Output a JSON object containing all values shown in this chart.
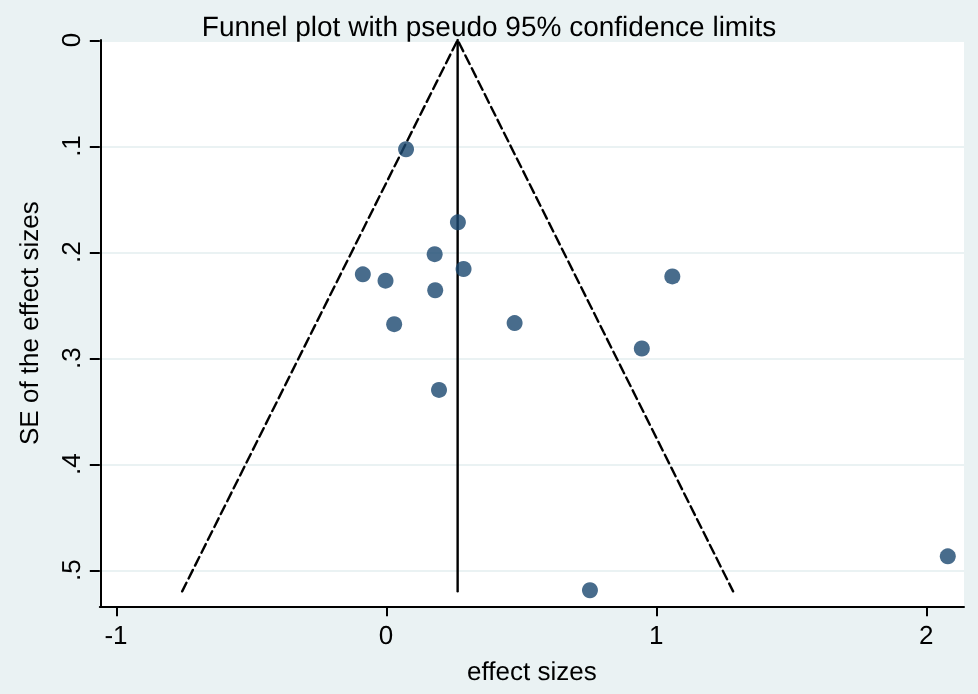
{
  "chart_data": {
    "type": "scatter",
    "title": "Funnel plot with pseudo 95% confidence limits",
    "xlabel": "effect sizes",
    "ylabel": "SE of the effect sizes",
    "xlim": [
      -1.06,
      2.14
    ],
    "xticks": [
      -1,
      0,
      1,
      2
    ],
    "ylim": [
      0.534,
      0
    ],
    "yticks": [
      {
        "value": 0,
        "label": "0"
      },
      {
        "value": 0.1,
        "label": ".1"
      },
      {
        "value": 0.2,
        "label": ".2"
      },
      {
        "value": 0.3,
        "label": ".3"
      },
      {
        "value": 0.4,
        "label": ".4"
      },
      {
        "value": 0.5,
        "label": ".5"
      }
    ],
    "grid": "y",
    "series": [
      {
        "marker": "circle",
        "color": "#1a476f",
        "x": [
          0.074,
          0.266,
          0.18,
          0.287,
          -0.086,
          -0.002,
          0.182,
          1.06,
          0.03,
          0.476,
          0.947,
          0.196,
          0.755,
          2.08
        ],
        "values": [
          0.103,
          0.172,
          0.202,
          0.216,
          0.221,
          0.227,
          0.236,
          0.223,
          0.268,
          0.267,
          0.291,
          0.33,
          0.519,
          0.487
        ]
      },
      {
        "type": "line",
        "marker": "none",
        "line_style": "dashed",
        "color": "#000000",
        "x": [
          -0.755,
          0.265,
          1.285
        ],
        "values": [
          0.52,
          0,
          0.52
        ]
      },
      {
        "type": "line",
        "marker": "none",
        "line_style": "solid",
        "color": "#000000",
        "x": [
          0.265,
          0.265
        ],
        "values": [
          0,
          0.52
        ]
      }
    ]
  }
}
